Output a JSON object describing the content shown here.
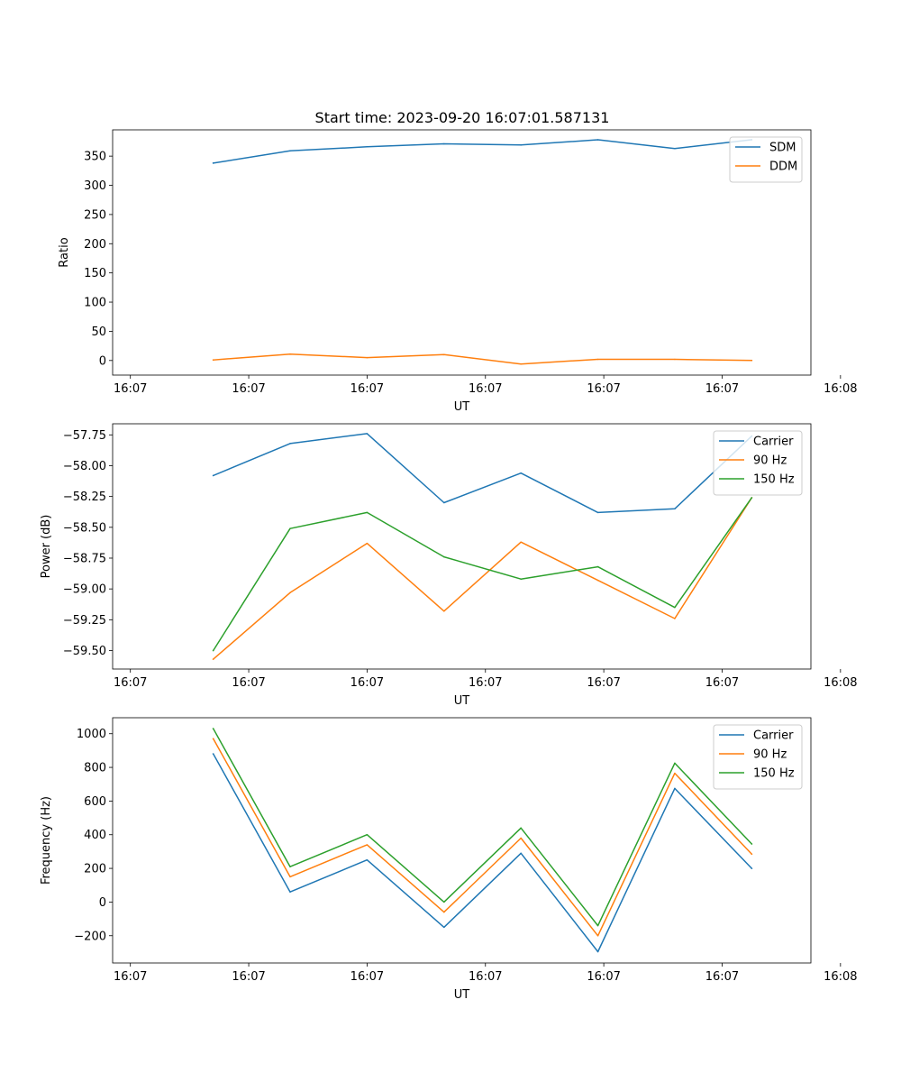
{
  "figure_title": "Start time: 2023-09-20 16:07:01.587131",
  "chart_data": [
    {
      "type": "line",
      "title": "Start time: 2023-09-20 16:07:01.587131",
      "xlabel": "UT",
      "ylabel": "Ratio",
      "x": [
        0.7,
        1.35,
        2.0,
        2.65,
        3.3,
        3.95,
        4.6,
        5.25
      ],
      "xlim": [
        -0.15,
        5.75
      ],
      "xticks": [
        0,
        1,
        2,
        3,
        4,
        5,
        6
      ],
      "xtick_labels": [
        "16:07",
        "16:07",
        "16:07",
        "16:07",
        "16:07",
        "16:07",
        "16:08"
      ],
      "ylim": [
        -25,
        395
      ],
      "yticks": [
        0,
        50,
        100,
        150,
        200,
        250,
        300,
        350
      ],
      "ytick_labels": [
        "0",
        "50",
        "100",
        "150",
        "200",
        "250",
        "300",
        "350"
      ],
      "legend_position": "top-right",
      "series": [
        {
          "name": "SDM",
          "color": "#1f77b4",
          "values": [
            338,
            359,
            366,
            371,
            369,
            378,
            363,
            378
          ]
        },
        {
          "name": "DDM",
          "color": "#ff7f0e",
          "values": [
            1,
            11,
            5,
            10,
            -6,
            2,
            2,
            0
          ]
        }
      ]
    },
    {
      "type": "line",
      "title": "",
      "xlabel": "UT",
      "ylabel": "Power (dB)",
      "x": [
        0.7,
        1.35,
        2.0,
        2.65,
        3.3,
        3.95,
        4.6,
        5.25
      ],
      "xlim": [
        -0.15,
        5.75
      ],
      "xticks": [
        0,
        1,
        2,
        3,
        4,
        5,
        6
      ],
      "xtick_labels": [
        "16:07",
        "16:07",
        "16:07",
        "16:07",
        "16:07",
        "16:07",
        "16:08"
      ],
      "ylim": [
        -59.65,
        -57.66
      ],
      "yticks": [
        -59.5,
        -59.25,
        -59.0,
        -58.75,
        -58.5,
        -58.25,
        -58.0,
        -57.75
      ],
      "ytick_labels": [
        "−59.50",
        "−59.25",
        "−59.00",
        "−58.75",
        "−58.50",
        "−58.25",
        "−58.00",
        "−57.75"
      ],
      "legend_position": "top-right",
      "series": [
        {
          "name": "Carrier",
          "color": "#1f77b4",
          "values": [
            -58.08,
            -57.82,
            -57.74,
            -58.3,
            -58.06,
            -58.38,
            -58.35,
            -57.76
          ]
        },
        {
          "name": "90 Hz",
          "color": "#ff7f0e",
          "values": [
            -59.57,
            -59.03,
            -58.63,
            -59.18,
            -58.62,
            -58.93,
            -59.24,
            -58.26
          ]
        },
        {
          "name": "150 Hz",
          "color": "#2ca02c",
          "values": [
            -59.5,
            -58.51,
            -58.38,
            -58.74,
            -58.92,
            -58.82,
            -59.15,
            -58.26
          ]
        }
      ]
    },
    {
      "type": "line",
      "title": "",
      "xlabel": "UT",
      "ylabel": "Frequency (Hz)",
      "x": [
        0.7,
        1.35,
        2.0,
        2.65,
        3.3,
        3.95,
        4.6,
        5.25
      ],
      "xlim": [
        -0.15,
        5.75
      ],
      "xticks": [
        0,
        1,
        2,
        3,
        4,
        5,
        6
      ],
      "xtick_labels": [
        "16:07",
        "16:07",
        "16:07",
        "16:07",
        "16:07",
        "16:07",
        "16:08"
      ],
      "ylim": [
        -362,
        1095
      ],
      "yticks": [
        -200,
        0,
        200,
        400,
        600,
        800,
        1000
      ],
      "ytick_labels": [
        "−200",
        "0",
        "200",
        "400",
        "600",
        "800",
        "1000"
      ],
      "legend_position": "top-right",
      "series": [
        {
          "name": "Carrier",
          "color": "#1f77b4",
          "values": [
            880,
            60,
            250,
            -150,
            290,
            -295,
            675,
            200
          ]
        },
        {
          "name": "90 Hz",
          "color": "#ff7f0e",
          "values": [
            970,
            150,
            340,
            -60,
            380,
            -200,
            765,
            285
          ]
        },
        {
          "name": "150 Hz",
          "color": "#2ca02c",
          "values": [
            1030,
            210,
            400,
            0,
            440,
            -140,
            825,
            345
          ]
        }
      ]
    }
  ]
}
